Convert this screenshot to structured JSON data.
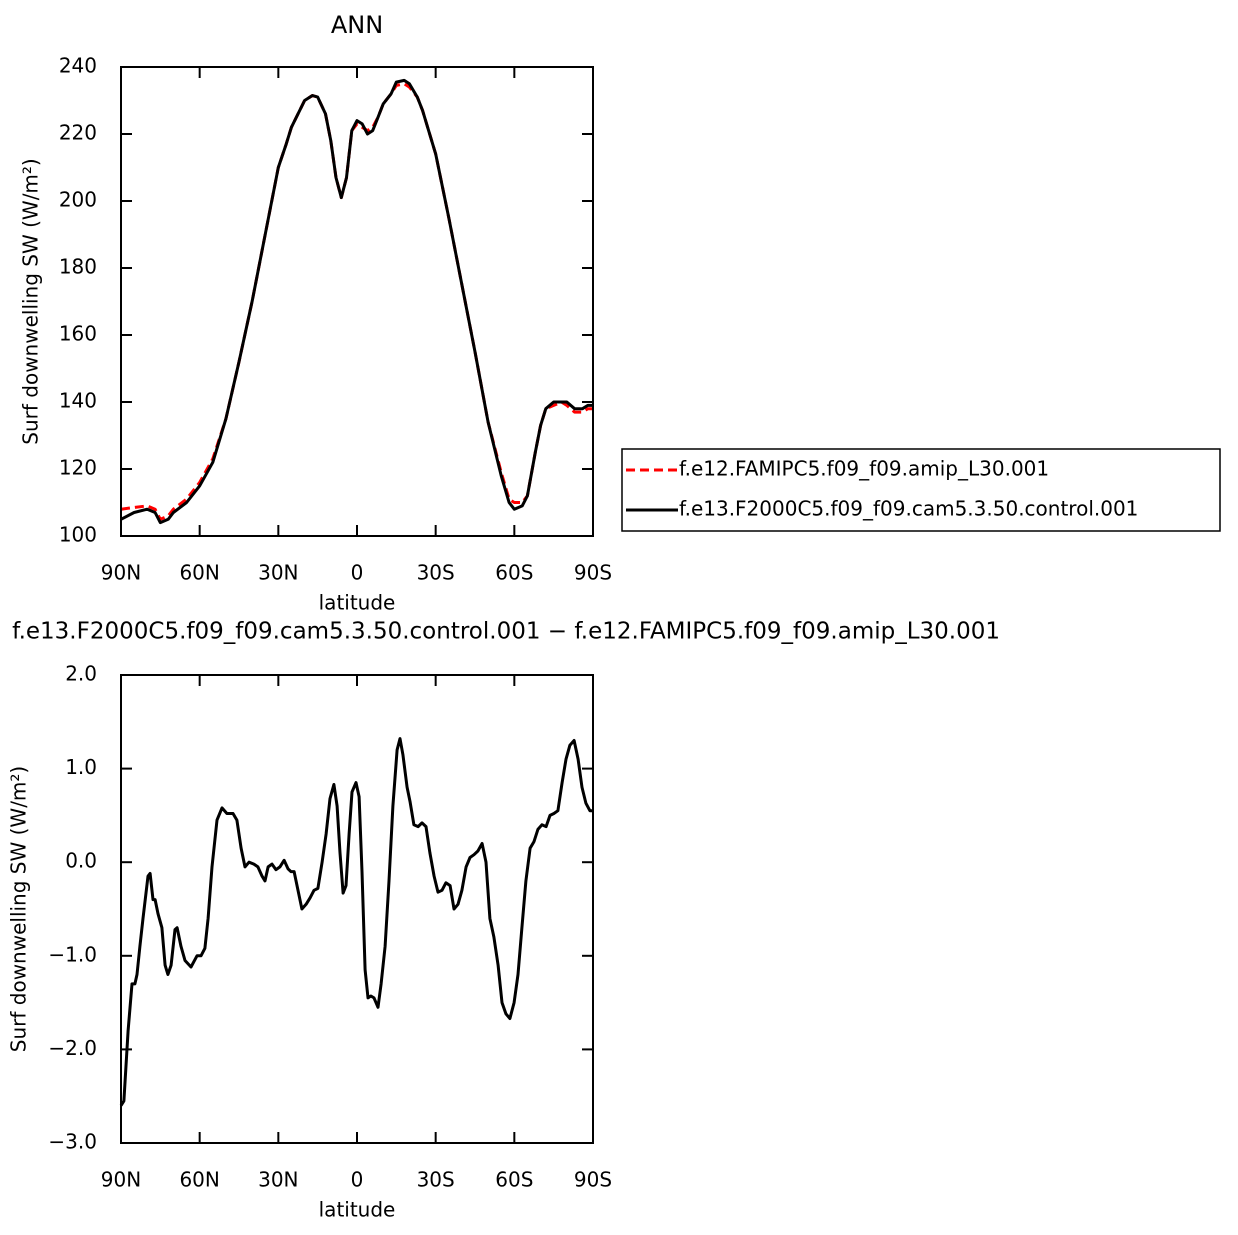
{
  "chart_data": [
    {
      "type": "line",
      "title": "ANN",
      "xlabel": "latitude",
      "ylabel": "Surf downwelling SW (W/m²)",
      "xlim": [
        90,
        -90
      ],
      "xticks": [
        {
          "value": 90,
          "label": "90N"
        },
        {
          "value": 60,
          "label": "60N"
        },
        {
          "value": 30,
          "label": "30N"
        },
        0,
        {
          "value": -30,
          "label": "30S"
        },
        {
          "value": -60,
          "label": "60S"
        },
        {
          "value": -90,
          "label": "90S"
        }
      ],
      "ylim": [
        100,
        240
      ],
      "yticks": [
        100,
        120,
        140,
        160,
        180,
        200,
        220,
        240
      ],
      "x": [
        90,
        85,
        80,
        77,
        75,
        72,
        70,
        65,
        60,
        55,
        50,
        45,
        40,
        35,
        30,
        27,
        25,
        20,
        17,
        15,
        12,
        10,
        8,
        6,
        4,
        2,
        0,
        -2,
        -4,
        -6,
        -8,
        -10,
        -13,
        -15,
        -18,
        -20,
        -23,
        -25,
        -30,
        -35,
        -40,
        -45,
        -50,
        -55,
        -58,
        -60,
        -63,
        -65,
        -68,
        -70,
        -72,
        -75,
        -78,
        -80,
        -83,
        -86,
        -88,
        -90
      ],
      "series": [
        {
          "name": "f.e12.FAMIPC5.f09_f09.amip_L30.001",
          "color": "#ff0000",
          "linestyle": "dashed",
          "values": [
            108,
            108.5,
            109,
            108,
            105,
            106,
            108,
            111,
            116,
            123,
            135,
            152,
            170,
            190,
            210,
            217,
            222,
            230,
            231.5,
            231,
            226,
            218,
            207,
            201,
            207,
            221,
            223,
            222,
            221,
            222,
            225,
            229,
            232,
            234.5,
            235,
            234,
            231,
            227,
            214,
            195,
            175,
            155,
            134,
            119,
            111,
            110,
            110,
            112,
            125,
            133,
            138,
            139,
            140,
            139,
            137,
            137,
            138,
            138
          ]
        },
        {
          "name": "f.e13.F2000C5.f09_f09.cam5.3.50.control.001",
          "color": "#000000",
          "linestyle": "solid",
          "values": [
            105,
            107,
            108,
            107,
            104,
            105,
            107,
            110,
            115,
            122,
            135,
            152,
            170,
            190,
            210,
            217,
            222,
            230,
            231.5,
            231,
            226,
            218,
            207,
            201,
            207,
            221,
            224,
            223,
            220,
            221,
            225,
            229,
            232,
            235.5,
            236,
            235,
            231,
            227,
            214,
            195,
            175,
            155,
            134,
            118,
            110,
            108,
            109,
            112,
            125,
            133,
            138,
            140,
            140,
            140,
            138,
            138,
            139,
            139
          ]
        }
      ]
    },
    {
      "type": "line",
      "title": "f.e13.F2000C5.f09_f09.cam5.3.50.control.001 − f.e12.FAMIPC5.f09_f09.amip_L30.001",
      "xlabel": "latitude",
      "ylabel": "Surf downwelling SW (W/m²)",
      "xlim": [
        90,
        -90
      ],
      "xticks": [
        {
          "value": 90,
          "label": "90N"
        },
        {
          "value": 60,
          "label": "60N"
        },
        {
          "value": 30,
          "label": "30N"
        },
        0,
        {
          "value": -30,
          "label": "30S"
        },
        {
          "value": -60,
          "label": "60S"
        },
        {
          "value": -90,
          "label": "90S"
        }
      ],
      "ylim": [
        -3,
        2
      ],
      "yticks": [
        {
          "value": -3,
          "label": "−3.0"
        },
        {
          "value": -2,
          "label": "−2.0"
        },
        {
          "value": -1,
          "label": "−1.0"
        },
        {
          "value": 0,
          "label": "0.0"
        },
        {
          "value": 1,
          "label": "1.0"
        },
        {
          "value": 2,
          "label": "2.0"
        }
      ],
      "color": "#000000",
      "x": [
        90,
        88.9,
        87.3,
        85.8,
        84.7,
        83.9,
        82.8,
        81.6,
        79.7,
        78.9,
        77.8,
        77.0,
        75.9,
        74.4,
        73.2,
        72.1,
        70.9,
        69.4,
        68.6,
        67.1,
        65.6,
        63.3,
        61.0,
        59.5,
        58.0,
        56.8,
        55.3,
        53.4,
        51.5,
        49.6,
        47.3,
        45.8,
        44.2,
        42.7,
        41.2,
        39.3,
        37.8,
        36.2,
        35.1,
        33.9,
        32.4,
        30.9,
        29.4,
        27.8,
        26.3,
        25.2,
        24.0,
        22.5,
        21.0,
        19.4,
        17.9,
        16.4,
        14.9,
        13.3,
        11.8,
        10.3,
        8.8,
        7.6,
        6.5,
        5.3,
        4.2,
        3.0,
        1.9,
        0.4,
        -0.8,
        -1.9,
        -3.1,
        -4.2,
        -5.3,
        -6.5,
        -8.0,
        -9.2,
        -10.7,
        -12.2,
        -13.7,
        -15.3,
        -16.4,
        -17.5,
        -19.1,
        -20.2,
        -21.7,
        -23.3,
        -24.8,
        -26.3,
        -27.8,
        -29.4,
        -30.9,
        -32.4,
        -33.9,
        -35.5,
        -37.0,
        -38.5,
        -40.0,
        -41.6,
        -43.1,
        -44.6,
        -46.1,
        -47.7,
        -49.2,
        -50.7,
        -52.2,
        -53.8,
        -55.3,
        -56.8,
        -58.3,
        -59.9,
        -61.4,
        -62.9,
        -64.4,
        -66.0,
        -67.5,
        -69.0,
        -70.5,
        -72.1,
        -73.6,
        -75.1,
        -76.6,
        -78.2,
        -79.7,
        -81.2,
        -82.8,
        -84.3,
        -85.8,
        -87.3,
        -88.8,
        -90
      ],
      "values": [
        -2.6,
        -2.55,
        -1.8,
        -1.3,
        -1.3,
        -1.2,
        -0.9,
        -0.6,
        -0.15,
        -0.12,
        -0.4,
        -0.4,
        -0.55,
        -0.7,
        -1.1,
        -1.2,
        -1.1,
        -0.72,
        -0.7,
        -0.9,
        -1.05,
        -1.12,
        -1.0,
        -1.0,
        -0.92,
        -0.6,
        -0.05,
        0.45,
        0.58,
        0.52,
        0.52,
        0.45,
        0.15,
        -0.05,
        0.0,
        -0.02,
        -0.05,
        -0.15,
        -0.2,
        -0.05,
        -0.02,
        -0.08,
        -0.05,
        0.02,
        -0.07,
        -0.1,
        -0.1,
        -0.3,
        -0.5,
        -0.45,
        -0.38,
        -0.3,
        -0.28,
        0.0,
        0.3,
        0.68,
        0.83,
        0.6,
        0.1,
        -0.33,
        -0.25,
        0.3,
        0.75,
        0.85,
        0.7,
        -0.1,
        -1.15,
        -1.45,
        -1.43,
        -1.45,
        -1.55,
        -1.3,
        -0.9,
        -0.2,
        0.6,
        1.2,
        1.32,
        1.15,
        0.8,
        0.65,
        0.4,
        0.38,
        0.42,
        0.38,
        0.1,
        -0.15,
        -0.32,
        -0.3,
        -0.22,
        -0.25,
        -0.5,
        -0.45,
        -0.3,
        -0.05,
        0.05,
        0.08,
        0.12,
        0.2,
        0.0,
        -0.6,
        -0.8,
        -1.1,
        -1.5,
        -1.62,
        -1.67,
        -1.5,
        -1.2,
        -0.7,
        -0.2,
        0.15,
        0.22,
        0.35,
        0.4,
        0.38,
        0.5,
        0.52,
        0.55,
        0.85,
        1.1,
        1.25,
        1.3,
        1.1,
        0.8,
        0.63,
        0.55,
        0.55
      ]
    }
  ]
}
